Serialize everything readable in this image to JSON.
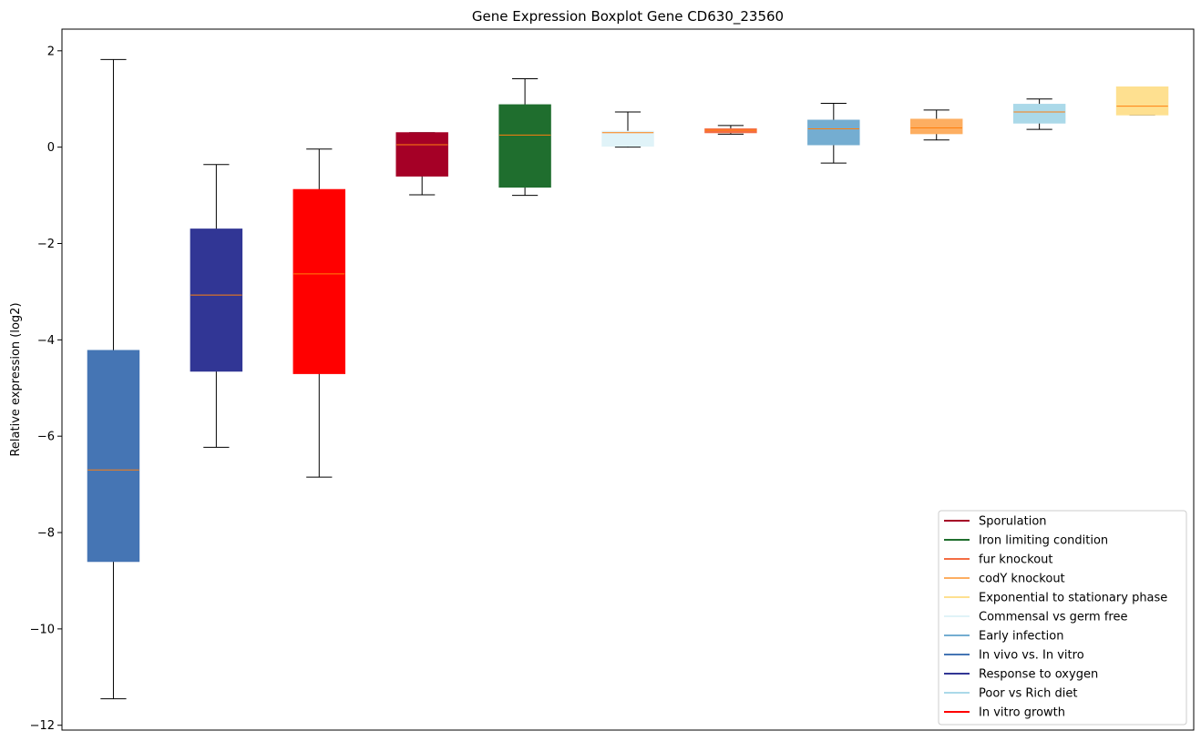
{
  "chart_data": {
    "type": "boxplot",
    "title": "Gene Expression Boxplot Gene CD630_23560",
    "xlabel": "",
    "ylabel": "Relative expression (log2)",
    "ylim": [
      -12.1,
      2.45
    ],
    "yticks": [
      {
        "value": 2,
        "label": "2"
      },
      {
        "value": 0,
        "label": "0"
      },
      {
        "value": -2,
        "label": "−2"
      },
      {
        "value": -4,
        "label": "−4"
      },
      {
        "value": -6,
        "label": "−6"
      },
      {
        "value": -8,
        "label": "−8"
      },
      {
        "value": -10,
        "label": "−10"
      },
      {
        "value": -12,
        "label": "−12"
      }
    ],
    "grid": false,
    "legend_position": "lower-right",
    "median_color": "#ff7f0e",
    "boxes": [
      {
        "color": "#4575b4",
        "whisker_low": -11.45,
        "q1": -8.6,
        "median": -6.7,
        "q3": -4.22,
        "whisker_high": 1.82
      },
      {
        "color": "#313695",
        "whisker_low": -6.23,
        "q1": -4.65,
        "median": -3.07,
        "q3": -1.7,
        "whisker_high": -0.36
      },
      {
        "color": "#ff0000",
        "whisker_low": -6.85,
        "q1": -4.7,
        "median": -2.63,
        "q3": -0.88,
        "whisker_high": -0.04
      },
      {
        "color": "#a50026",
        "whisker_low": -0.99,
        "q1": -0.6,
        "median": 0.05,
        "q3": 0.3,
        "whisker_high": 0.3
      },
      {
        "color": "#1f6e2e",
        "whisker_low": -1.0,
        "q1": -0.83,
        "median": 0.25,
        "q3": 0.88,
        "whisker_high": 1.42
      },
      {
        "color": "#e0f3f8",
        "whisker_low": 0.0,
        "q1": 0.02,
        "median": 0.3,
        "q3": 0.33,
        "whisker_high": 0.73
      },
      {
        "color": "#f46d43",
        "whisker_low": 0.27,
        "q1": 0.3,
        "median": 0.35,
        "q3": 0.38,
        "whisker_high": 0.45
      },
      {
        "color": "#74add1",
        "whisker_low": -0.33,
        "q1": 0.05,
        "median": 0.38,
        "q3": 0.56,
        "whisker_high": 0.91
      },
      {
        "color": "#fdae61",
        "whisker_low": 0.15,
        "q1": 0.28,
        "median": 0.4,
        "q3": 0.58,
        "whisker_high": 0.77
      },
      {
        "color": "#abd9e9",
        "whisker_low": 0.37,
        "q1": 0.5,
        "median": 0.73,
        "q3": 0.89,
        "whisker_high": 1.0
      },
      {
        "color": "#fee090",
        "whisker_low": 0.67,
        "q1": 0.67,
        "median": 0.85,
        "q3": 1.25,
        "whisker_high": 1.25
      }
    ],
    "legend": [
      {
        "label": "Sporulation",
        "color": "#a50026"
      },
      {
        "label": "Iron limiting condition",
        "color": "#1f6e2e"
      },
      {
        "label": "fur knockout",
        "color": "#f46d43"
      },
      {
        "label": "codY knockout",
        "color": "#fdae61"
      },
      {
        "label": "Exponential to stationary phase",
        "color": "#fee090"
      },
      {
        "label": "Commensal vs germ free",
        "color": "#e0f3f8"
      },
      {
        "label": "Early infection",
        "color": "#74add1"
      },
      {
        "label": "In vivo vs. In vitro",
        "color": "#4575b4"
      },
      {
        "label": "Response to oxygen",
        "color": "#313695"
      },
      {
        "label": "Poor vs Rich diet",
        "color": "#abd9e9"
      },
      {
        "label": "In vitro growth",
        "color": "#ff0000"
      }
    ]
  }
}
